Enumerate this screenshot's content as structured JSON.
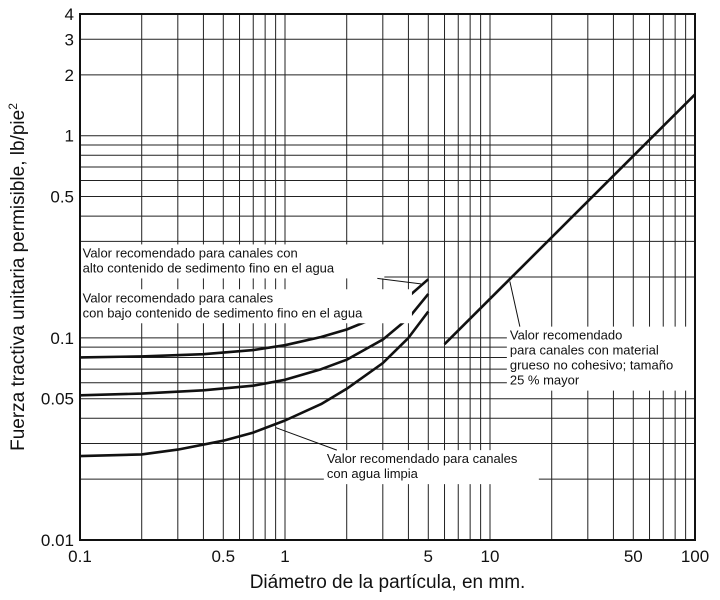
{
  "chart_data": {
    "type": "line",
    "xscale": "log",
    "yscale": "log",
    "xlim": [
      0.1,
      100
    ],
    "ylim": [
      0.01,
      4
    ],
    "grid": true,
    "xlabel": "Diámetro de la partícula, en mm.",
    "ylabel_main": "Fuerza tractiva unitaria permisible, lb/pie",
    "ylabel_sup": "2",
    "xticks": [
      {
        "v": 0.1,
        "label": "0.1"
      },
      {
        "v": 0.5,
        "label": "0.5"
      },
      {
        "v": 1,
        "label": "1"
      },
      {
        "v": 5,
        "label": "5"
      },
      {
        "v": 10,
        "label": "10"
      },
      {
        "v": 50,
        "label": "50"
      },
      {
        "v": 100,
        "label": "100"
      }
    ],
    "yticks": [
      {
        "v": 0.01,
        "label": "0.01"
      },
      {
        "v": 0.05,
        "label": "0.05"
      },
      {
        "v": 0.1,
        "label": "0.1"
      },
      {
        "v": 0.5,
        "label": "0.5"
      },
      {
        "v": 1,
        "label": "1"
      },
      {
        "v": 2,
        "label": "2"
      },
      {
        "v": 3,
        "label": "3"
      },
      {
        "v": 4,
        "label": "4"
      }
    ],
    "series": [
      {
        "x": [
          0.1,
          0.2,
          0.4,
          0.7,
          1,
          1.5,
          2,
          3,
          4,
          5
        ],
        "y": [
          0.08,
          0.081,
          0.083,
          0.087,
          0.092,
          0.101,
          0.11,
          0.13,
          0.16,
          0.195
        ]
      },
      {
        "x": [
          0.1,
          0.2,
          0.4,
          0.7,
          1,
          1.5,
          2,
          3,
          4,
          5
        ],
        "y": [
          0.052,
          0.053,
          0.055,
          0.058,
          0.062,
          0.07,
          0.078,
          0.098,
          0.125,
          0.165
        ]
      },
      {
        "x": [
          0.1,
          0.2,
          0.3,
          0.5,
          0.7,
          1,
          1.5,
          2,
          3,
          4,
          5
        ],
        "y": [
          0.026,
          0.0265,
          0.028,
          0.031,
          0.034,
          0.039,
          0.047,
          0.056,
          0.075,
          0.1,
          0.135
        ]
      },
      {
        "x": [
          6,
          100
        ],
        "y": [
          0.093,
          1.6
        ]
      }
    ],
    "annotations": [
      {
        "lines": [
          "Valor recomendado para canales con",
          "alto contenido de sedimento fino en el agua"
        ],
        "x": 0.103,
        "y": 0.25,
        "arrow_to": [
          4.6,
          0.185
        ]
      },
      {
        "lines": [
          "Valor recomendado para canales",
          "con bajo contenido de sedimento fino en el agua"
        ],
        "x": 0.103,
        "y": 0.15,
        "arrow_to": [
          0.5,
          0.058
        ]
      },
      {
        "lines": [
          "Valor recomendado para canales",
          "con agua limpia"
        ],
        "x": 1.6,
        "y": 0.024,
        "arrow_to": [
          0.9,
          0.036
        ]
      },
      {
        "lines": [
          "Valor recomendado",
          "para canales con material",
          "grueso no cohesivo; tamaño",
          "25 % mayor"
        ],
        "x": 12.5,
        "y": 0.098,
        "arrow_to": [
          12.5,
          0.19
        ]
      }
    ]
  }
}
